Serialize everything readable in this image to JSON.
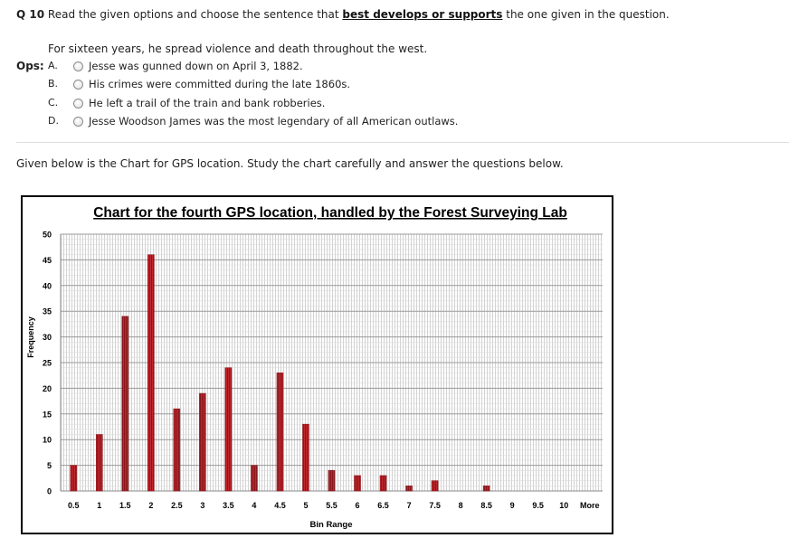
{
  "question": {
    "number": "Q 10",
    "prompt_before": "Read the given options and choose the sentence that",
    "prompt_emphasis": "best develops or supports",
    "prompt_after": "the one given in the question.",
    "stem": "For sixteen years, he spread violence and death throughout the west.",
    "ops_label": "Ops:",
    "options": [
      {
        "letter": "A.",
        "text": "Jesse was gunned down on April 3, 1882."
      },
      {
        "letter": "B.",
        "text": "His crimes were committed during the late 1860s."
      },
      {
        "letter": "C.",
        "text": "He left a trail of the train and bank robberies."
      },
      {
        "letter": "D.",
        "text": "Jesse Woodson James was the most legendary of all American outlaws."
      }
    ]
  },
  "chart_intro": "Given below is the Chart for GPS location. Study the chart carefully and answer the questions below.",
  "chart_data": {
    "type": "bar",
    "title": "Chart for the fourth GPS location, handled by the Forest Surveying Lab",
    "xlabel": "Bin Range",
    "ylabel": "Frequency",
    "categories": [
      "0.5",
      "1",
      "1.5",
      "2",
      "2.5",
      "3",
      "3.5",
      "4",
      "4.5",
      "5",
      "5.5",
      "6",
      "6.5",
      "7",
      "7.5",
      "8",
      "8.5",
      "9",
      "9.5",
      "10",
      "More"
    ],
    "values": [
      5,
      11,
      34,
      46,
      16,
      19,
      24,
      5,
      23,
      13,
      4,
      3,
      3,
      1,
      2,
      0,
      1,
      0,
      0,
      0,
      0
    ],
    "ylim": [
      0,
      50
    ],
    "yticks": [
      "0",
      "5",
      "10",
      "15",
      "20",
      "25",
      "30",
      "35",
      "40",
      "45",
      "50"
    ],
    "grid": true,
    "bar_color": "#c0272d"
  }
}
